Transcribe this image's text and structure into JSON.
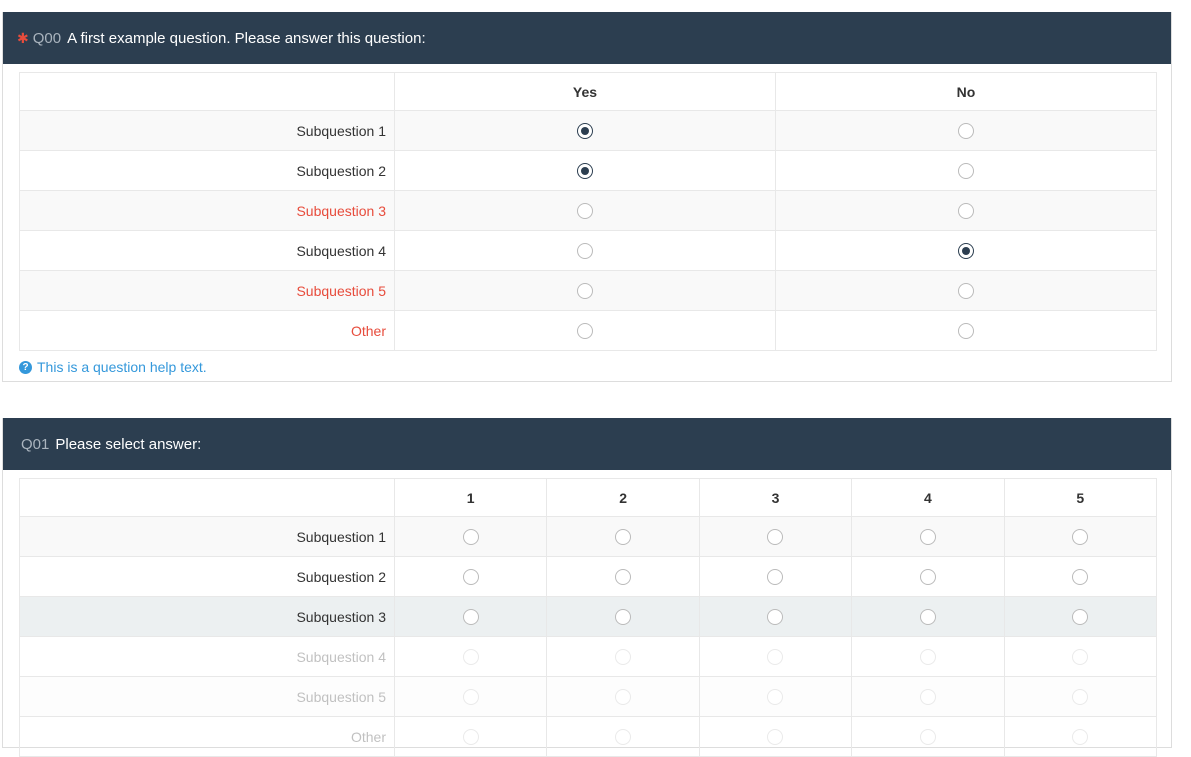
{
  "q0": {
    "required": "✱",
    "code": "Q00",
    "text": "A first example question. Please answer this question:",
    "columns": [
      "Yes",
      "No"
    ],
    "rows": [
      {
        "label": "Subquestion 1",
        "selected": 0,
        "error": false
      },
      {
        "label": "Subquestion 2",
        "selected": 0,
        "error": false
      },
      {
        "label": "Subquestion 3",
        "selected": null,
        "error": true
      },
      {
        "label": "Subquestion 4",
        "selected": 1,
        "error": false
      },
      {
        "label": "Subquestion 5",
        "selected": null,
        "error": true
      },
      {
        "label": "Other",
        "selected": null,
        "error": true
      }
    ],
    "help": "This is a question help text."
  },
  "q1": {
    "code": "Q01",
    "text": "Please select answer:",
    "columns": [
      "1",
      "2",
      "3",
      "4",
      "5"
    ],
    "rows": [
      {
        "label": "Subquestion 1",
        "state": "normal"
      },
      {
        "label": "Subquestion 2",
        "state": "normal"
      },
      {
        "label": "Subquestion 3",
        "state": "highlighted"
      },
      {
        "label": "Subquestion 4",
        "state": "faded"
      },
      {
        "label": "Subquestion 5",
        "state": "faded"
      },
      {
        "label": "Other",
        "state": "faded"
      }
    ]
  },
  "colors": {
    "header": "#2c3e50",
    "error": "#e74c3c",
    "help": "#3498db"
  }
}
